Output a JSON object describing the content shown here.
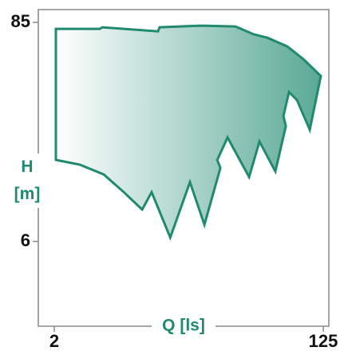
{
  "chart_data": {
    "type": "area",
    "xlabel": "Q [ls]",
    "ylabel": "H [m]",
    "x": [
      2.05,
      4.03,
      4.18,
      9.86,
      10.1,
      18.7,
      32.4,
      43.0,
      53.0,
      72.0,
      92.0,
      120.5,
      101.6,
      83.5,
      73.8,
      67.8,
      70.3,
      59.9,
      46.9,
      40.0,
      28.7,
      24.5,
      25.7,
      20.1,
      16.1,
      11.9,
      8.94,
      7.72,
      5.82,
      4.28,
      2.96,
      2.05
    ],
    "values": [
      78.6,
      78.6,
      80.1,
      76.3,
      80.1,
      81.7,
      80.9,
      73.5,
      70.6,
      63.5,
      54.5,
      44.4,
      23.2,
      33.2,
      36.6,
      27.4,
      24.2,
      14.0,
      20.1,
      13.1,
      21.1,
      16.1,
      14.6,
      7.35,
      12.3,
      6.29,
      10.9,
      8.83,
      10.9,
      13.5,
      15.2,
      16.1
    ],
    "xlim": [
      2,
      125
    ],
    "ylim": [
      6,
      85
    ],
    "xticks": [
      2,
      125
    ],
    "yticks": [
      6,
      85
    ],
    "xscale": "log",
    "yscale": "log",
    "color": "#1f8a6e",
    "fill_from": "#ffffff",
    "fill_to": "#5aa996"
  }
}
